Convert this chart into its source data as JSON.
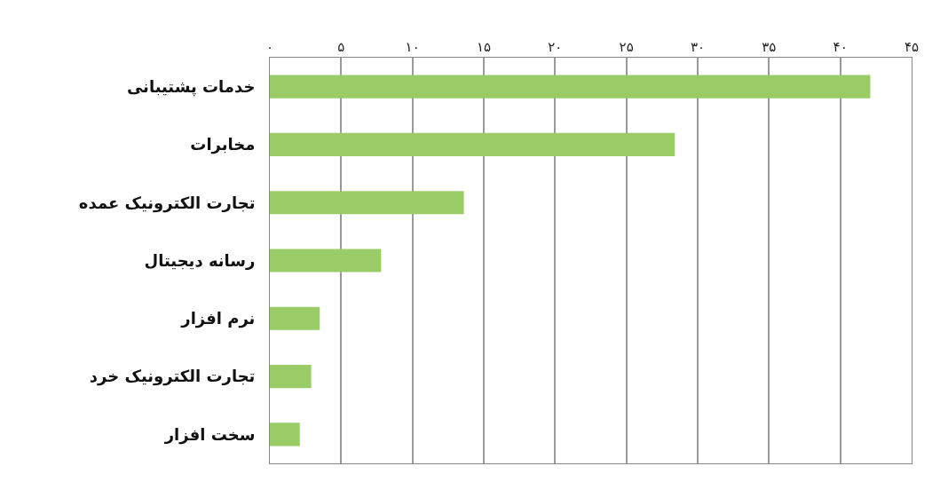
{
  "chart_data": {
    "type": "bar",
    "orientation": "horizontal",
    "categories": [
      "خدمات پشتیبانی",
      "مخابرات",
      "تجارت الکترونیک عمده",
      "رسانه دیجیتال",
      "نرم افزار",
      "تجارت الکترونیک خرد",
      "سخت افزار"
    ],
    "values": [
      42.1,
      28.4,
      13.6,
      7.8,
      3.5,
      2.9,
      2.1
    ],
    "color": "#99cc66",
    "xlim": [
      0,
      45
    ],
    "xticks": [
      {
        "value": 0,
        "label": "۰"
      },
      {
        "value": 5,
        "label": "۵"
      },
      {
        "value": 10,
        "label": "۱۰"
      },
      {
        "value": 15,
        "label": "۱۵"
      },
      {
        "value": 20,
        "label": "۲۰"
      },
      {
        "value": 25,
        "label": "۲۵"
      },
      {
        "value": 30,
        "label": "۳۰"
      },
      {
        "value": 35,
        "label": "۳۵"
      },
      {
        "value": 40,
        "label": "۴۰"
      },
      {
        "value": 45,
        "label": "۴۵"
      }
    ],
    "grid": "x"
  }
}
